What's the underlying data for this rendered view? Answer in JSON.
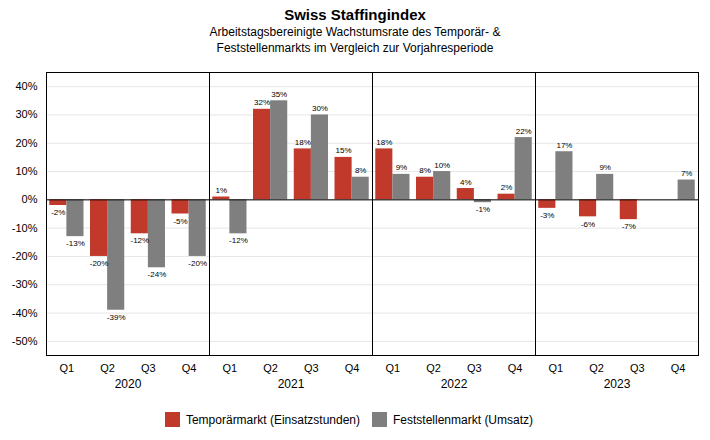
{
  "chart_data": {
    "type": "bar",
    "title": "Swiss Staffingindex",
    "subtitle": "Arbeitstagsbereinigte Wachstumsrate des Temporär- &\nFeststellenmarkts im Vergleich zur Vorjahresperiode",
    "categories": [
      "Q1",
      "Q2",
      "Q3",
      "Q4",
      "Q1",
      "Q2",
      "Q3",
      "Q4",
      "Q1",
      "Q2",
      "Q3",
      "Q4",
      "Q1",
      "Q2",
      "Q3",
      "Q4"
    ],
    "groups": [
      "2020",
      "2021",
      "2022",
      "2023"
    ],
    "series": [
      {
        "name": "Temporärmarkt (Einsatzstunden)",
        "color": "#c0392b",
        "values": [
          -2,
          -20,
          -12,
          -5,
          1,
          32,
          18,
          15,
          18,
          8,
          4,
          2,
          -3,
          -6,
          -7,
          null
        ],
        "value_labels": [
          "-2%",
          "-20%",
          "-12%",
          "-5%",
          "1%",
          "32%",
          "18%",
          "15%",
          "18%",
          "8%",
          "4%",
          "2%",
          "-3%",
          "-6%",
          "-7%",
          null
        ]
      },
      {
        "name": "Feststellenmarkt (Umsatz)",
        "color": "#7f7f7f",
        "values": [
          -13,
          -39,
          -24,
          -20,
          -12,
          35,
          30,
          8,
          9,
          10,
          -1,
          22,
          17,
          9,
          null,
          7
        ],
        "value_labels": [
          "-13%",
          "-39%",
          "-24%",
          "-20%",
          "-12%",
          "35%",
          "30%",
          "8%",
          "9%",
          "10%",
          "-1%",
          "22%",
          "17%",
          "9%",
          null,
          "7%"
        ]
      }
    ],
    "ylim": [
      -55,
      45
    ],
    "yticks": [
      {
        "value": -50,
        "label": "-50%"
      },
      {
        "value": -40,
        "label": "-40%"
      },
      {
        "value": -30,
        "label": "-30%"
      },
      {
        "value": -20,
        "label": "-20%"
      },
      {
        "value": -10,
        "label": "-10%"
      },
      {
        "value": 0,
        "label": "0%"
      },
      {
        "value": 10,
        "label": "10%"
      },
      {
        "value": 20,
        "label": "20%"
      },
      {
        "value": 30,
        "label": "30%"
      },
      {
        "value": 40,
        "label": "40%"
      }
    ],
    "grid": true,
    "legend": "bottom",
    "data_labels": true
  }
}
